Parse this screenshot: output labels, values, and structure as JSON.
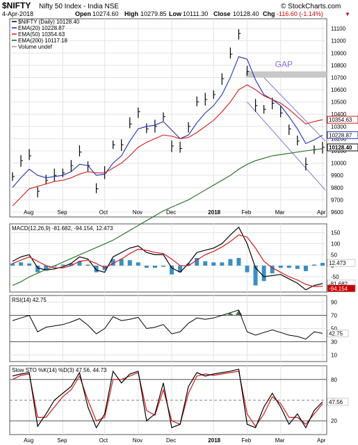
{
  "header": {
    "symbol": "$NIFTY",
    "name": "Nifty 50 Index - India NSE",
    "source": "© StockCharts.com",
    "date": "4-Apr-2018",
    "open_label": "Open",
    "open": "10274.60",
    "high_label": "High",
    "high": "10279.85",
    "low_label": "Low",
    "low": "10111.30",
    "close_label": "Close",
    "close": "10128.40",
    "chg_label": "Chg",
    "chg": "-116.60 (-1.14%)",
    "chg_arrow": "▼"
  },
  "colors": {
    "price": "#000000",
    "ema20": "#1f2db5",
    "ema50": "#d11919",
    "ema200": "#1a6b1a",
    "wedge": "#8a6fd6",
    "gap": "#c8c8c8",
    "macd_hist": "#3a8fc4",
    "rsi_fill": "#4a7a4a",
    "grid": "#e3e3e3",
    "loss": "#cc0000"
  },
  "months": [
    "Aug",
    "Sep",
    "Oct",
    "Nov",
    "Dec",
    "2018",
    "Feb",
    "Mar",
    "Apr"
  ],
  "price_panel": {
    "legend": [
      "$NIFTY (Daily) 10128.40",
      "EMA(20) 10228.87",
      "EMA(50) 10354.63",
      "EMA(200) 10117.18",
      "Volume undef"
    ],
    "annotation": "GAP",
    "y_ticks": [
      9600,
      9700,
      9800,
      9900,
      10000,
      10100,
      10200,
      10300,
      10400,
      10500,
      10600,
      10700,
      10800,
      10900,
      11000,
      11100
    ],
    "y_range": [
      9560,
      11180
    ],
    "value_tags": [
      {
        "label": "10354.63",
        "value": 10354.63
      },
      {
        "label": "10228.87",
        "value": 10228.87
      },
      {
        "label": "10128.40",
        "value": 10128.4
      }
    ]
  },
  "macd_panel": {
    "legend": "MACD(12,26,9) -81.682, -94.154, 12.473",
    "y_ticks": [
      150,
      100,
      50,
      0,
      -50
    ],
    "y_range": [
      -120,
      190
    ],
    "value_tags": [
      {
        "label": "12.473",
        "value": 12.473
      },
      {
        "label": "-81.682",
        "value": -81.682
      },
      {
        "label": "-94.154",
        "value": -94.154
      }
    ]
  },
  "rsi_panel": {
    "legend": "RSI(14) 42.75",
    "y_ticks": [
      90,
      70,
      50,
      30,
      10
    ],
    "y_range": [
      0,
      100
    ],
    "value_tag": {
      "label": "42.75",
      "value": 42.75
    }
  },
  "sto_panel": {
    "legend": "Slow STO %K(14) %D(3) 47.56, 44.73",
    "y_ticks": [
      80,
      50,
      20
    ],
    "y_range": [
      0,
      100
    ],
    "value_tag": {
      "label": "47.56",
      "value": 47.56
    }
  },
  "chart_data": [
    {
      "type": "line",
      "title": "$NIFTY (Daily)",
      "x": [
        "2017-07-21",
        "2017-07-28",
        "2017-08-04",
        "2017-08-11",
        "2017-08-18",
        "2017-08-25",
        "2017-09-01",
        "2017-09-08",
        "2017-09-15",
        "2017-09-22",
        "2017-09-29",
        "2017-10-06",
        "2017-10-13",
        "2017-10-20",
        "2017-10-27",
        "2017-11-03",
        "2017-11-10",
        "2017-11-17",
        "2017-11-24",
        "2017-12-01",
        "2017-12-08",
        "2017-12-15",
        "2017-12-22",
        "2017-12-29",
        "2018-01-05",
        "2018-01-12",
        "2018-01-19",
        "2018-01-26",
        "2018-02-02",
        "2018-02-09",
        "2018-02-16",
        "2018-02-23",
        "2018-03-02",
        "2018-03-09",
        "2018-03-16",
        "2018-03-23",
        "2018-03-30",
        "2018-04-04"
      ],
      "series": [
        {
          "name": "$NIFTY",
          "values": [
            9890,
            10020,
            10060,
            9770,
            9860,
            9900,
            9920,
            9980,
            10090,
            9980,
            9790,
            9920,
            10150,
            10150,
            10320,
            10420,
            10280,
            10300,
            10380,
            10140,
            10120,
            10300,
            10500,
            10520,
            10560,
            10690,
            10890,
            11060,
            10750,
            10470,
            10440,
            10490,
            10410,
            10280,
            10180,
            9990,
            10110,
            10128.4
          ]
        },
        {
          "name": "EMA(20)",
          "values": [
            9800,
            9880,
            9950,
            9900,
            9880,
            9890,
            9900,
            9930,
            9990,
            9980,
            9900,
            9910,
            10000,
            10060,
            10180,
            10280,
            10300,
            10310,
            10340,
            10270,
            10200,
            10230,
            10330,
            10410,
            10470,
            10560,
            10700,
            10870,
            10850,
            10680,
            10560,
            10520,
            10470,
            10380,
            10280,
            10160,
            10190,
            10228.87
          ]
        },
        {
          "name": "EMA(50)",
          "values": [
            9650,
            9720,
            9790,
            9810,
            9830,
            9850,
            9860,
            9880,
            9910,
            9930,
            9920,
            9920,
            9960,
            10000,
            10060,
            10130,
            10170,
            10200,
            10230,
            10220,
            10200,
            10210,
            10250,
            10300,
            10350,
            10420,
            10500,
            10600,
            10640,
            10600,
            10550,
            10520,
            10490,
            10440,
            10380,
            10320,
            10340,
            10354.63
          ]
        },
        {
          "name": "EMA(200)",
          "values": [
            9000,
            9030,
            9070,
            9100,
            9130,
            9160,
            9190,
            9220,
            9250,
            9280,
            9310,
            9340,
            9370,
            9410,
            9450,
            9490,
            9530,
            9570,
            9610,
            9640,
            9670,
            9700,
            9740,
            9780,
            9820,
            9860,
            9900,
            9950,
            9990,
            10020,
            10040,
            10060,
            10070,
            10080,
            10090,
            10100,
            10110,
            10117.18
          ]
        }
      ]
    },
    {
      "type": "line",
      "title": "MACD(12,26,9)",
      "series": [
        {
          "name": "MACD",
          "values": [
            20,
            40,
            50,
            -10,
            -20,
            -15,
            -5,
            10,
            40,
            30,
            -20,
            -30,
            40,
            60,
            80,
            90,
            60,
            50,
            50,
            -10,
            -30,
            10,
            60,
            70,
            80,
            100,
            140,
            175,
            100,
            -10,
            -50,
            -45,
            -40,
            -60,
            -80,
            -110,
            -90,
            -81.682
          ]
        },
        {
          "name": "Signal",
          "values": [
            10,
            25,
            40,
            20,
            0,
            -10,
            -10,
            0,
            20,
            25,
            10,
            -10,
            10,
            30,
            55,
            75,
            70,
            60,
            55,
            30,
            0,
            0,
            25,
            50,
            65,
            85,
            110,
            140,
            130,
            80,
            20,
            -10,
            -30,
            -50,
            -65,
            -85,
            -95,
            -94.154
          ]
        },
        {
          "name": "Histogram",
          "values": [
            10,
            15,
            10,
            -30,
            -20,
            -5,
            5,
            10,
            20,
            5,
            -30,
            -20,
            30,
            30,
            25,
            15,
            -10,
            -10,
            -5,
            -40,
            -30,
            10,
            35,
            20,
            15,
            15,
            30,
            35,
            -30,
            -90,
            -70,
            -35,
            -10,
            -10,
            -15,
            -25,
            5,
            12.473
          ]
        }
      ]
    },
    {
      "type": "line",
      "title": "RSI(14)",
      "series": [
        {
          "name": "RSI(14)",
          "values": [
            62,
            66,
            70,
            45,
            52,
            54,
            56,
            60,
            65,
            55,
            42,
            50,
            68,
            62,
            64,
            67,
            50,
            52,
            56,
            42,
            45,
            58,
            66,
            64,
            66,
            70,
            74,
            78,
            45,
            40,
            44,
            48,
            44,
            40,
            38,
            34,
            45,
            42.75
          ]
        }
      ]
    },
    {
      "type": "line",
      "title": "Slow STO %K(14) %D(3)",
      "series": [
        {
          "name": "%K",
          "values": [
            85,
            88,
            90,
            12,
            30,
            50,
            60,
            70,
            90,
            40,
            10,
            30,
            92,
            75,
            88,
            92,
            20,
            30,
            75,
            10,
            15,
            70,
            90,
            85,
            88,
            90,
            92,
            95,
            15,
            10,
            40,
            60,
            40,
            15,
            30,
            10,
            35,
            47.56
          ]
        },
        {
          "name": "%D",
          "values": [
            80,
            86,
            88,
            25,
            25,
            40,
            55,
            65,
            85,
            50,
            20,
            25,
            80,
            80,
            85,
            90,
            35,
            28,
            65,
            20,
            15,
            60,
            85,
            88,
            86,
            88,
            90,
            92,
            30,
            12,
            30,
            55,
            45,
            25,
            25,
            15,
            30,
            44.73
          ]
        }
      ]
    }
  ]
}
